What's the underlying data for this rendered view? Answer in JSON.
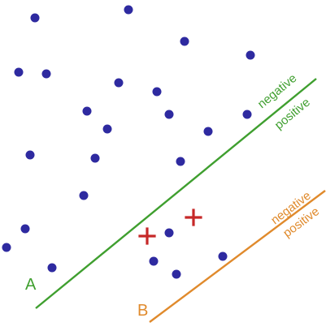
{
  "colors": {
    "background": "#ffffff",
    "dot": "#2e2aa0",
    "plus": "#c62828",
    "line_a": "#3f9f2f",
    "line_b": "#e08a2c"
  },
  "lines": {
    "a": {
      "name": "A",
      "negative_label": "negative",
      "positive_label": "positive"
    },
    "b": {
      "name": "B",
      "negative_label": "negative",
      "positive_label": "positive"
    }
  }
}
